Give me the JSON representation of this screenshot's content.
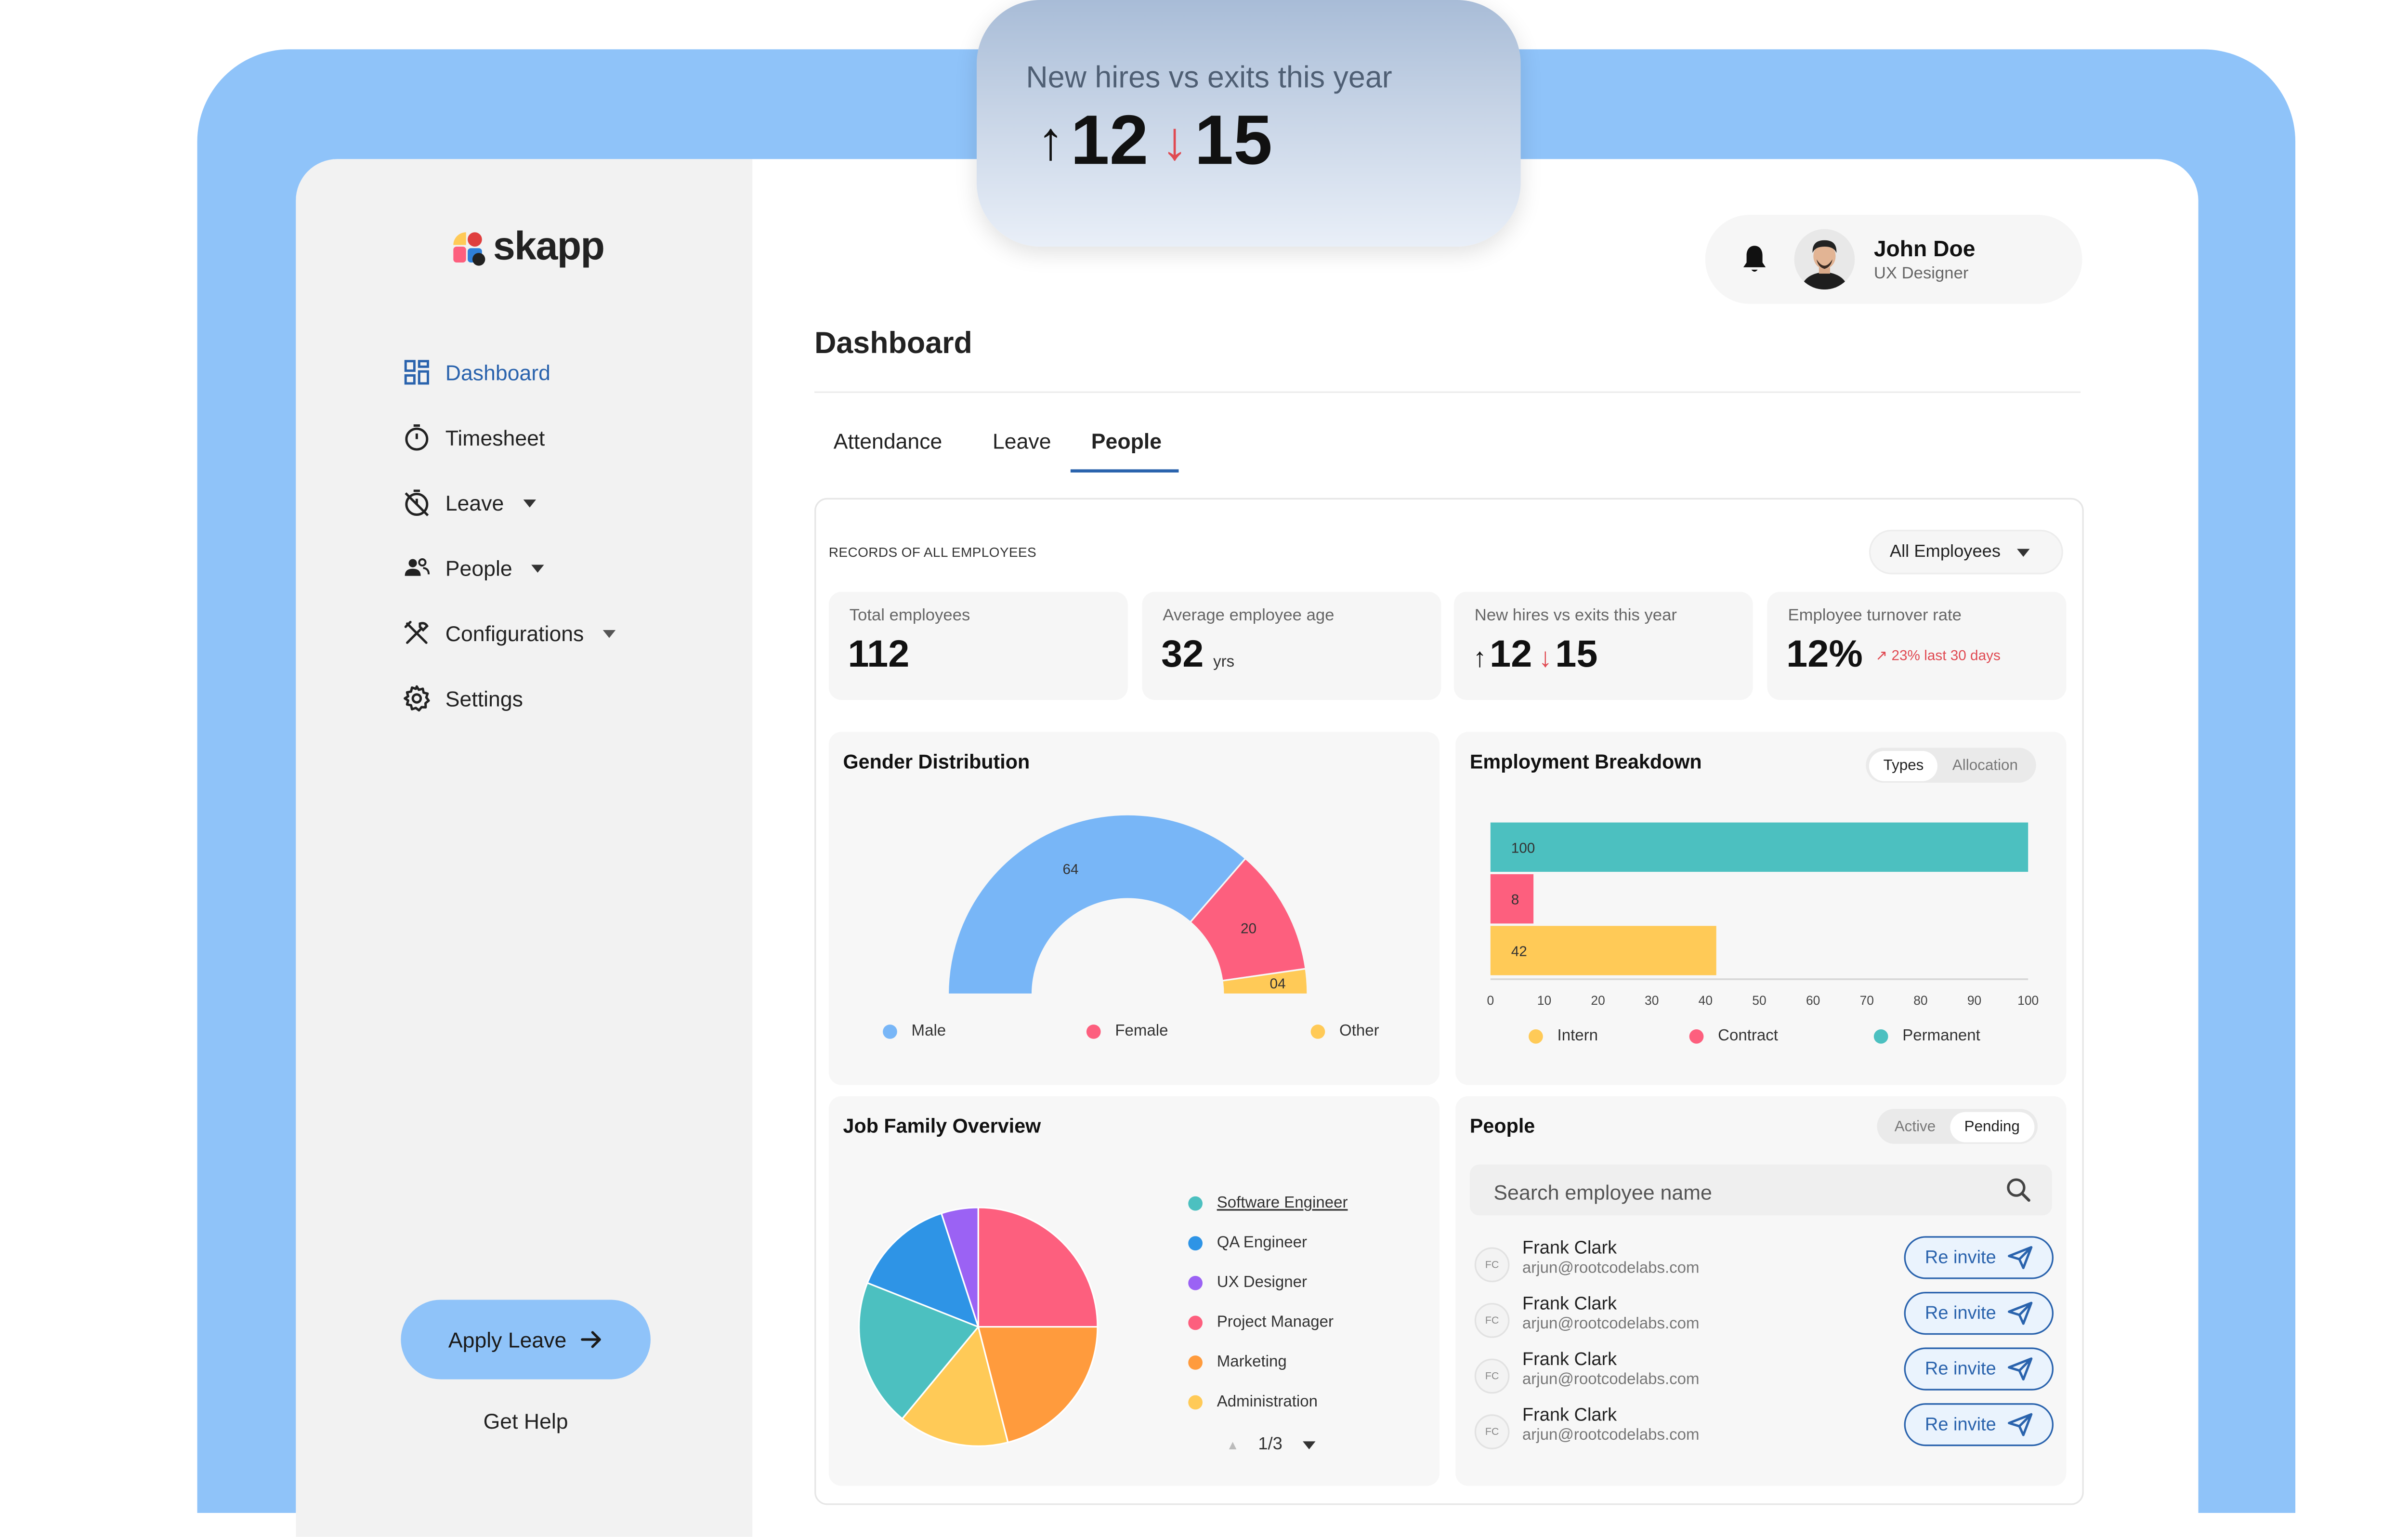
{
  "app": {
    "brand": "skapp"
  },
  "sidebar": {
    "items": [
      {
        "label": "Dashboard",
        "icon": "dashboard-icon",
        "active": true,
        "has_caret": false
      },
      {
        "label": "Timesheet",
        "icon": "timer-icon",
        "active": false,
        "has_caret": false
      },
      {
        "label": "Leave",
        "icon": "leave-icon",
        "active": false,
        "has_caret": true
      },
      {
        "label": "People",
        "icon": "people-icon",
        "active": false,
        "has_caret": true
      },
      {
        "label": "Configurations",
        "icon": "tools-icon",
        "active": false,
        "has_caret": true
      },
      {
        "label": "Settings",
        "icon": "gear-icon",
        "active": false,
        "has_caret": false
      }
    ],
    "apply_leave": "Apply Leave",
    "get_help": "Get Help"
  },
  "user": {
    "name": "John Doe",
    "role": "UX Designer"
  },
  "page": {
    "title": "Dashboard"
  },
  "tabs": [
    {
      "label": "Attendance",
      "active": false
    },
    {
      "label": "Leave",
      "active": false
    },
    {
      "label": "People",
      "active": true
    }
  ],
  "records": {
    "heading": "RECORDS OF ALL EMPLOYEES",
    "filter": "All Employees"
  },
  "stats": {
    "total": {
      "label": "Total employees",
      "value": "112"
    },
    "age": {
      "label": "Average employee age",
      "value": "32",
      "unit": "yrs"
    },
    "hires": {
      "label": "New hires vs exits this year",
      "hires": "12",
      "exits": "15"
    },
    "turnover": {
      "label": "Employee turnover rate",
      "value": "12%",
      "trend": "23% last 30 days"
    }
  },
  "floating_card": {
    "title": "New hires vs exits this year",
    "hires": "12",
    "exits": "15"
  },
  "gender": {
    "title": "Gender Distribution",
    "legend": [
      "Male",
      "Female",
      "Other"
    ]
  },
  "employment": {
    "title": "Employment Breakdown",
    "toggle": [
      "Types",
      "Allocation"
    ],
    "legend": [
      "Intern",
      "Contract",
      "Permanent"
    ]
  },
  "job_family": {
    "title": "Job Family Overview",
    "legend": [
      "Software Engineer",
      "QA Engineer",
      "UX Designer",
      "Project Manager",
      "Marketing",
      "Administration"
    ],
    "pager": "1/3"
  },
  "people": {
    "title": "People",
    "toggle": [
      "Active",
      "Pending"
    ],
    "search_placeholder": "Search employee name",
    "rows": [
      {
        "initials": "FC",
        "name": "Frank Clark",
        "email": "arjun@rootcodelabs.com",
        "action": "Re invite"
      },
      {
        "initials": "FC",
        "name": "Frank Clark",
        "email": "arjun@rootcodelabs.com",
        "action": "Re invite"
      },
      {
        "initials": "FC",
        "name": "Frank Clark",
        "email": "arjun@rootcodelabs.com",
        "action": "Re invite"
      },
      {
        "initials": "FC",
        "name": "Frank Clark",
        "email": "arjun@rootcodelabs.com",
        "action": "Re invite"
      }
    ]
  },
  "colors": {
    "accent": "#2a63ad",
    "male": "#78b6f7",
    "female": "#fd5f7e",
    "other": "#ffca57",
    "permanent": "#4cc0c0",
    "software_engineer": "#4cc0c0",
    "qa_engineer": "#2e94e6",
    "ux_designer": "#9b62f4",
    "project_manager": "#fd5f7e",
    "marketing": "#ff9b3d",
    "administration": "#ffca57"
  },
  "chart_data": [
    {
      "type": "pie",
      "variant": "semi-donut",
      "title": "Gender Distribution",
      "categories": [
        "Male",
        "Female",
        "Other"
      ],
      "values": [
        64,
        20,
        4
      ],
      "data_labels": [
        "64",
        "20",
        "04"
      ]
    },
    {
      "type": "bar",
      "orientation": "horizontal",
      "title": "Employment Breakdown",
      "categories": [
        "Permanent",
        "Contract",
        "Intern"
      ],
      "values": [
        100,
        8,
        42
      ],
      "xlim": [
        0,
        100
      ],
      "xticks": [
        0,
        10,
        20,
        30,
        40,
        50,
        60,
        70,
        80,
        90,
        100
      ],
      "grid": false,
      "legend": [
        "Intern",
        "Contract",
        "Permanent"
      ]
    },
    {
      "type": "pie",
      "title": "Job Family Overview",
      "categories": [
        "Software Engineer",
        "QA Engineer",
        "UX Designer",
        "Project Manager",
        "Marketing",
        "Administration"
      ],
      "values": [
        20,
        14,
        5,
        25,
        21,
        15
      ]
    }
  ]
}
